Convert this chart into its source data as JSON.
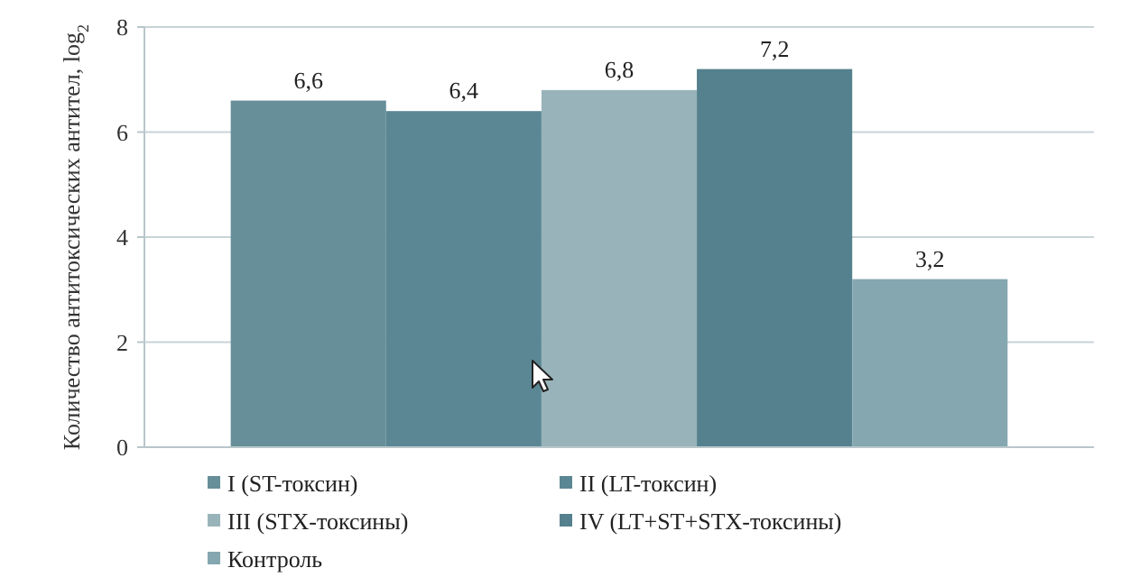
{
  "chart_data": {
    "type": "bar",
    "ylabel": "Количество антитоксических антител, log$_{2}$",
    "categories": [
      null
    ],
    "series": [
      {
        "name": "I (ST-токсин)",
        "color": "#668f99",
        "values": [
          6.6
        ]
      },
      {
        "name": "II (LT-токсин)",
        "color": "#5b8794",
        "values": [
          6.4
        ]
      },
      {
        "name": "III (STX-токсины)",
        "color": "#98b4ba",
        "values": [
          6.8
        ]
      },
      {
        "name": "IV (LT+ST+STX-токсины)",
        "color": "#55808e",
        "values": [
          7.2
        ]
      },
      {
        "name": "Контроль",
        "color": "#84a7b0",
        "values": [
          3.2
        ]
      }
    ],
    "value_labels": [
      [
        "6,6"
      ],
      [
        "6,4"
      ],
      [
        "6,8"
      ],
      [
        "7,2"
      ],
      [
        "3,2"
      ]
    ],
    "ylim": [
      0,
      8
    ],
    "yticks": [
      0,
      2,
      4,
      6,
      8
    ],
    "grid": "y",
    "legend": "bottom"
  }
}
